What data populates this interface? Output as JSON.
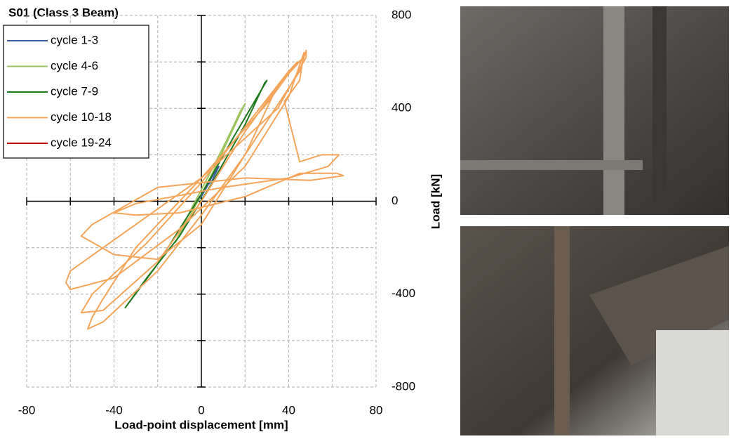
{
  "chart_data": {
    "type": "line",
    "title": "S01 (Class 3 Beam)",
    "x_label": "Load-point displacement [mm]",
    "y_label": "Load [kN]",
    "xlim": [
      -80,
      80
    ],
    "ylim": [
      -800,
      800
    ],
    "xticks": [
      -80,
      -40,
      0,
      40,
      80
    ],
    "yticks": [
      -800,
      -400,
      0,
      400,
      800
    ],
    "xgrid": [
      -80,
      -60,
      -40,
      -20,
      0,
      20,
      40,
      60,
      80
    ],
    "ygrid": [
      -800,
      -600,
      -400,
      -200,
      0,
      200,
      400,
      600,
      800
    ],
    "grid": true,
    "legend": "upper left",
    "series": [
      {
        "name": "cycle 1-3",
        "color": "#3b5b9c",
        "x": [
          -5,
          -2,
          0,
          3,
          5,
          8,
          7,
          4,
          0,
          -3,
          -5
        ],
        "values": [
          -40,
          0,
          20,
          70,
          90,
          150,
          140,
          90,
          30,
          -10,
          -40
        ]
      },
      {
        "name": "cycle 4-6",
        "color": "#9dc35c",
        "x": [
          -12,
          -5,
          5,
          15,
          20,
          18,
          12,
          5,
          -5,
          -12
        ],
        "values": [
          -180,
          -60,
          120,
          320,
          420,
          390,
          270,
          140,
          -40,
          -180
        ]
      },
      {
        "name": "cycle 7-9",
        "color": "#1f7a1f",
        "x": [
          -35,
          -20,
          0,
          15,
          30,
          29,
          20,
          5,
          -10,
          -25,
          -35
        ],
        "values": [
          -460,
          -270,
          30,
          280,
          520,
          510,
          330,
          80,
          -150,
          -330,
          -460
        ]
      },
      {
        "name": "cycle 10-18",
        "color": "#f4a55a",
        "x": [
          0,
          20,
          40,
          44,
          30,
          0,
          -30,
          -45,
          -50,
          -52,
          -45,
          -20,
          0,
          20,
          45,
          48,
          48,
          35,
          0,
          -30,
          -60,
          -62,
          -60,
          -40,
          -10,
          20,
          40,
          47,
          45,
          38,
          45,
          55,
          63,
          58,
          40,
          10,
          -30,
          -40,
          -30,
          -10,
          20,
          45,
          62,
          65,
          50,
          20,
          -20,
          -50,
          -55,
          -40,
          -20,
          0,
          20,
          35,
          47,
          40,
          20,
          0,
          -25,
          -50,
          -55,
          -45,
          -20,
          0
        ],
        "values": [
          0,
          300,
          560,
          600,
          420,
          100,
          -200,
          -420,
          -500,
          -550,
          -520,
          -300,
          -60,
          200,
          560,
          650,
          620,
          400,
          100,
          -100,
          -300,
          -350,
          -380,
          -330,
          -120,
          150,
          450,
          640,
          520,
          430,
          170,
          200,
          200,
          150,
          100,
          60,
          -10,
          -50,
          -60,
          -50,
          20,
          120,
          120,
          110,
          90,
          100,
          60,
          -100,
          -150,
          -230,
          -250,
          -100,
          200,
          500,
          620,
          560,
          320,
          80,
          -180,
          -400,
          -480,
          -470,
          -260,
          0
        ]
      },
      {
        "name": "cycle 19-24",
        "color": "#c00000",
        "x": [],
        "values": []
      }
    ]
  }
}
